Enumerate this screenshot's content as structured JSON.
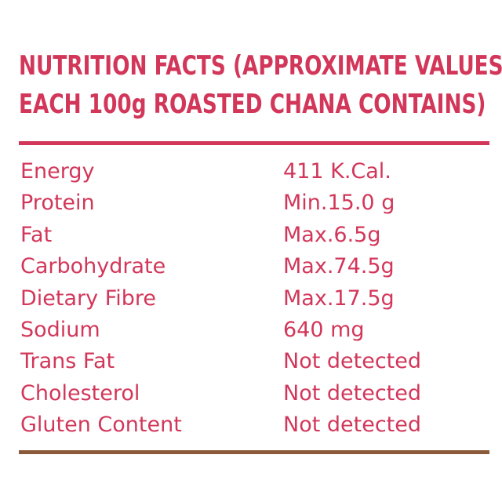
{
  "heading": {
    "line1": "NUTRITION FACTS (APPROXIMATE VALUES",
    "line2": "EACH 100g ROASTED CHANA CONTAINS)"
  },
  "colors": {
    "text": "#d2375a",
    "top_rule": "#d2375a",
    "bottom_rule": "#8a5a3a",
    "background": "#ffffff"
  },
  "rows": [
    {
      "label": "Energy",
      "value": "411 K.Cal."
    },
    {
      "label": "Protein",
      "value": "Min.15.0 g"
    },
    {
      "label": "Fat",
      "value": "Max.6.5g"
    },
    {
      "label": "Carbohydrate",
      "value": "Max.74.5g"
    },
    {
      "label": "Dietary Fibre",
      "value": "Max.17.5g"
    },
    {
      "label": "Sodium",
      "value": "640 mg"
    },
    {
      "label": "Trans Fat",
      "value": "Not detected"
    },
    {
      "label": "Cholesterol",
      "value": "Not detected"
    },
    {
      "label": "Gluten Content",
      "value": "Not detected"
    }
  ]
}
